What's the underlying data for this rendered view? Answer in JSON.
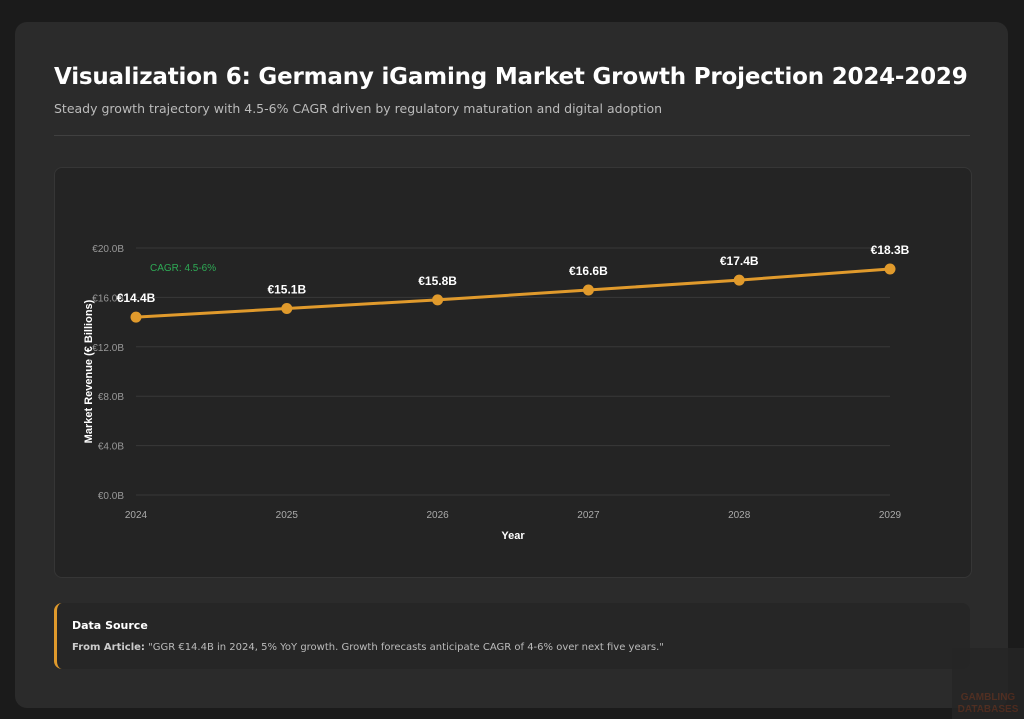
{
  "header": {
    "title": "Visualization 6: Germany iGaming Market Growth Projection 2024-2029",
    "subtitle": "Steady growth trajectory with 4.5-6% CAGR driven by regulatory maturation and digital adoption"
  },
  "chart_data": {
    "type": "line",
    "categories": [
      "2024",
      "2025",
      "2026",
      "2027",
      "2028",
      "2029"
    ],
    "values": [
      14.4,
      15.1,
      15.8,
      16.6,
      17.4,
      18.3
    ],
    "data_labels": [
      "€14.4B",
      "€15.1B",
      "€15.8B",
      "€16.6B",
      "€17.4B",
      "€18.3B"
    ],
    "xlabel": "Year",
    "ylabel": "Market Revenue (€ Billions)",
    "ylim": [
      0,
      20
    ],
    "yticks": [
      0,
      4,
      8,
      12,
      16,
      20
    ],
    "ytick_labels": [
      "€0.0B",
      "€4.0B",
      "€8.0B",
      "€12.0B",
      "€16.0B",
      "€20.0B"
    ],
    "annotation": "CAGR: 4.5-6%",
    "grid": true,
    "colors": {
      "line": "#e09a2c",
      "annotation": "#2eaa55"
    }
  },
  "source": {
    "heading": "Data Source",
    "label": "From Article:",
    "text": " \"GGR €14.4B in 2024, 5% YoY growth. Growth forecasts anticipate CAGR of 4-6% over next five years.\""
  },
  "watermark": {
    "line1": "GAMBLING",
    "line2": "DATABASES"
  }
}
